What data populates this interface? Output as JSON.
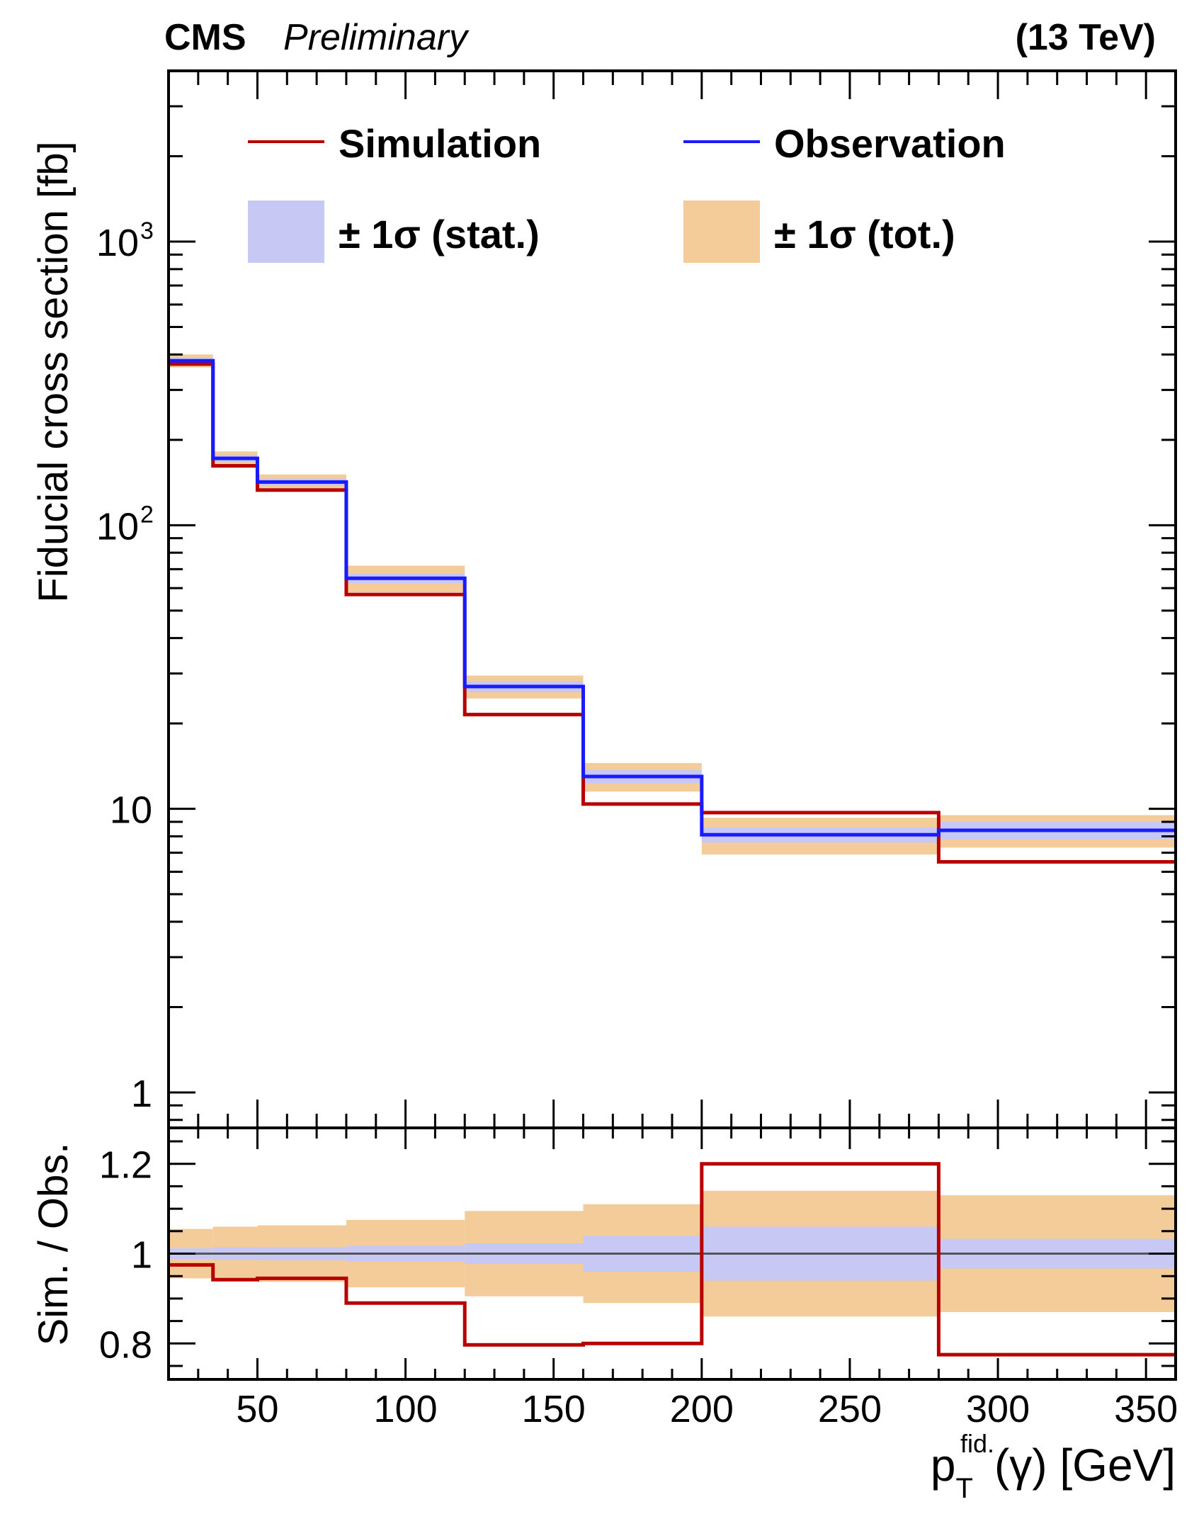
{
  "header": {
    "experiment": "CMS",
    "status": "Preliminary",
    "energy": "(13 TeV)"
  },
  "colors": {
    "simulation": "#b80000",
    "observation": "#1a1aff",
    "stat_band": "#c8c8f5",
    "tot_band": "#f3cc9a",
    "ratio_line": "#555555"
  },
  "chart_data": [
    {
      "type": "line",
      "title": "",
      "ylabel": "Fiducial cross section [fb]",
      "yscale": "log",
      "ylim": [
        0.75,
        4000
      ],
      "xlim": [
        20,
        360
      ],
      "yticks": [
        {
          "value": 1,
          "label": "1"
        },
        {
          "value": 10,
          "label": "10"
        },
        {
          "value": 100,
          "label": "10",
          "exp": "2"
        },
        {
          "value": 1000,
          "label": "10",
          "exp": "3"
        }
      ],
      "legend": {
        "placement": "top",
        "entries": [
          {
            "key": "simulation",
            "label": "Simulation"
          },
          {
            "key": "observation",
            "label": "Observation"
          },
          {
            "key": "stat",
            "label": "± 1σ (stat.)"
          },
          {
            "key": "tot",
            "label": "± 1σ (tot.)"
          }
        ]
      },
      "bin_edges": [
        20,
        35,
        50,
        80,
        120,
        160,
        200,
        280,
        360
      ],
      "series": [
        {
          "name": "Simulation",
          "values": [
            370,
            162,
            133,
            57,
            21.5,
            10.4,
            9.7,
            6.5
          ]
        },
        {
          "name": "Observation",
          "values": [
            380,
            172,
            142,
            65,
            27,
            13,
            8.1,
            8.4
          ]
        }
      ],
      "bands": {
        "stat": {
          "low": [
            370,
            167,
            138,
            62.5,
            25.8,
            12.3,
            7.6,
            7.8
          ],
          "high": [
            390,
            177,
            146,
            67.5,
            28.2,
            13.7,
            8.6,
            9.0
          ]
        },
        "tot": {
          "low": [
            360,
            163,
            133,
            58,
            24.5,
            11.5,
            6.9,
            7.3
          ],
          "high": [
            400,
            182,
            151,
            72,
            29.5,
            14.5,
            9.3,
            9.5
          ]
        }
      }
    },
    {
      "type": "line",
      "ylabel": "Sim. / Obs.",
      "xlabel_main": "p",
      "xlabel_sub": "T",
      "xlabel_sup": "fid.",
      "xlabel_tail": "(γ) [GeV]",
      "ylim": [
        0.72,
        1.28
      ],
      "xlim": [
        20,
        360
      ],
      "yticks": [
        {
          "value": 0.8,
          "label": "0.8"
        },
        {
          "value": 1.0,
          "label": "1"
        },
        {
          "value": 1.2,
          "label": "1.2"
        }
      ],
      "xticks": [
        50,
        100,
        150,
        200,
        250,
        300,
        350
      ],
      "bin_edges": [
        20,
        35,
        50,
        80,
        120,
        160,
        200,
        280,
        360
      ],
      "reference": 1.0,
      "series": [
        {
          "name": "Simulation / Observation",
          "values": [
            0.975,
            0.942,
            0.945,
            0.89,
            0.797,
            0.8,
            1.2,
            0.775
          ]
        }
      ],
      "bands": {
        "stat": {
          "half_width": [
            0.012,
            0.014,
            0.015,
            0.017,
            0.023,
            0.04,
            0.06,
            0.033
          ]
        },
        "tot": {
          "half_width": [
            0.055,
            0.06,
            0.063,
            0.075,
            0.095,
            0.11,
            0.14,
            0.13
          ]
        }
      }
    }
  ]
}
